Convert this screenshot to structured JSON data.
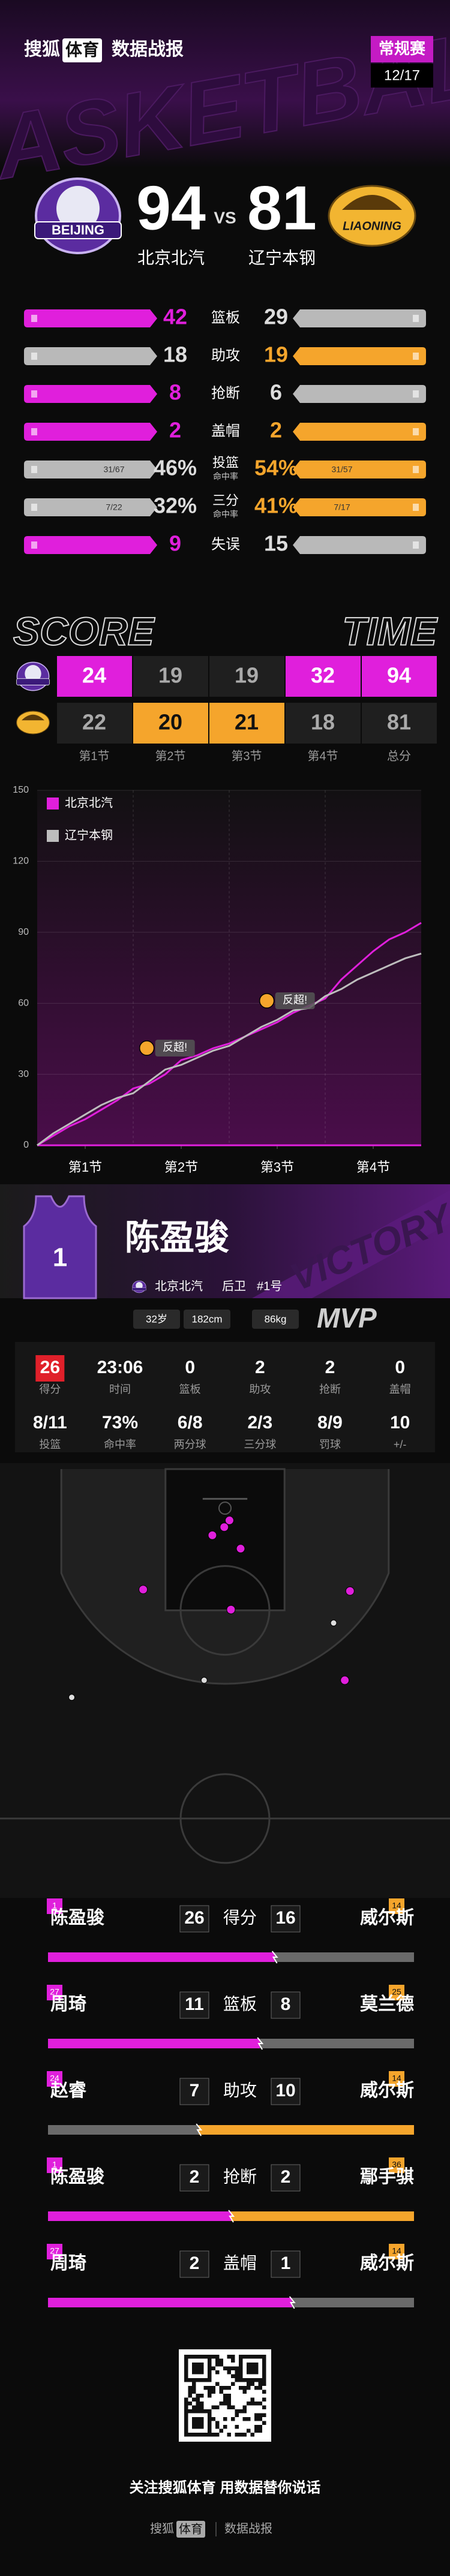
{
  "header": {
    "brand": "搜狐",
    "brand_box": "体育",
    "title": "数据战报",
    "badge": "常规赛",
    "date": "12/17",
    "watermark": "BASKETBALL"
  },
  "colors": {
    "home": "#e01fdc",
    "away": "#f5a52c",
    "neutral": "#b9b9b9"
  },
  "game": {
    "vs": "VS",
    "home": {
      "name": "北京北汽",
      "name_en": "BEIJING",
      "score": 94
    },
    "away": {
      "name": "辽宁本钢",
      "name_en": "LIAONING",
      "score": 81
    }
  },
  "team_stats": [
    {
      "label": "篮板",
      "home": 42,
      "away": 29,
      "better": "home"
    },
    {
      "label": "助攻",
      "home": 18,
      "away": 19,
      "better": "away"
    },
    {
      "label": "抢断",
      "home": 8,
      "away": 6,
      "better": "home"
    },
    {
      "label": "盖帽",
      "home": 2,
      "away": 2,
      "better": "both"
    },
    {
      "label": "投篮",
      "sublabel": "命中率",
      "home": 46,
      "away": 54,
      "home_label": "46%",
      "away_label": "54%",
      "home_detail": "31/67",
      "away_detail": "31/57",
      "better": "away"
    },
    {
      "label": "三分",
      "sublabel": "命中率",
      "home": 32,
      "away": 41,
      "home_label": "32%",
      "away_label": "41%",
      "home_detail": "7/22",
      "away_detail": "7/17",
      "better": "away"
    },
    {
      "label": "失误",
      "home": 9,
      "away": 15,
      "better": "home"
    }
  ],
  "quarters": {
    "title_left": "SCORE",
    "title_right": "TIME",
    "labels": [
      "第1节",
      "第2节",
      "第3节",
      "第4节",
      "总分"
    ],
    "home": [
      24,
      19,
      19,
      32,
      94
    ],
    "away": [
      22,
      20,
      21,
      18,
      81
    ]
  },
  "chart_data": {
    "type": "line",
    "x": [
      0,
      2,
      4,
      6,
      8,
      10,
      12,
      14,
      16,
      18,
      20,
      22,
      24,
      26,
      28,
      30,
      32,
      34,
      36,
      38,
      40,
      42,
      44,
      46,
      48
    ],
    "series": [
      {
        "name": "北京北汽",
        "color": "#e01fdc",
        "values": [
          0,
          4,
          8,
          11,
          15,
          19,
          24,
          26,
          30,
          36,
          38,
          41,
          43,
          46,
          49,
          52,
          56,
          59,
          62,
          70,
          76,
          82,
          87,
          90,
          94
        ]
      },
      {
        "name": "辽宁本钢",
        "color": "#bdbdbd",
        "values": [
          0,
          5,
          9,
          13,
          17,
          20,
          22,
          27,
          32,
          34,
          37,
          40,
          42,
          46,
          50,
          53,
          57,
          58,
          63,
          66,
          70,
          73,
          76,
          79,
          81
        ]
      }
    ],
    "xlim": [
      0,
      48
    ],
    "xticks": [
      {
        "value": 6,
        "label": "第1节"
      },
      {
        "value": 18,
        "label": "第2节"
      },
      {
        "value": 30,
        "label": "第3节"
      },
      {
        "value": 42,
        "label": "第4节"
      }
    ],
    "ylim": [
      0,
      150
    ],
    "yticks": [
      0,
      30,
      60,
      90,
      120,
      150
    ],
    "grid": true,
    "legend": "top-left",
    "annotations": [
      {
        "text": "反超!",
        "x": 17,
        "y": 36
      },
      {
        "text": "反超!",
        "x": 32,
        "y": 56
      }
    ]
  },
  "mvp": {
    "watermark": "VICTORY",
    "jersey": "1",
    "name": "陈盈骏",
    "team": "北京北汽",
    "position": "后卫",
    "number": "#1号",
    "age": "32岁",
    "height": "182cm",
    "weight": "86kg",
    "badge": "MVP",
    "stats": [
      {
        "value": 26,
        "label": "得分",
        "highlight": true
      },
      {
        "value": "23:06",
        "label": "时间"
      },
      {
        "value": 0,
        "label": "篮板"
      },
      {
        "value": 2,
        "label": "助攻"
      },
      {
        "value": 2,
        "label": "抢断"
      },
      {
        "value": 0,
        "label": "盖帽"
      },
      {
        "value": "8/11",
        "label": "投篮"
      },
      {
        "value": "73%",
        "label": "命中率"
      },
      {
        "value": "6/8",
        "label": "两分球"
      },
      {
        "value": "2/3",
        "label": "三分球"
      },
      {
        "value": "8/9",
        "label": "罚球"
      },
      {
        "value": 10,
        "label": "+/-"
      }
    ]
  },
  "shot_chart": {
    "shots": [
      {
        "x": 25.6,
        "y": 6.9,
        "made": true
      },
      {
        "x": 23.3,
        "y": 8.9,
        "made": true
      },
      {
        "x": 27.1,
        "y": 10.7,
        "made": true
      },
      {
        "x": 24.9,
        "y": 7.8,
        "made": true
      },
      {
        "x": 14,
        "y": 16.2,
        "made": true
      },
      {
        "x": 25.8,
        "y": 18.9,
        "made": true
      },
      {
        "x": 41.8,
        "y": 16.4,
        "made": true
      },
      {
        "x": 41.1,
        "y": 28.4,
        "made": true
      },
      {
        "x": 39.6,
        "y": 20.7,
        "made": false
      },
      {
        "x": 4.4,
        "y": 30.7,
        "made": false
      },
      {
        "x": 22.2,
        "y": 28.4,
        "made": false
      }
    ]
  },
  "leaders": [
    {
      "stat": "得分",
      "home": {
        "name": "陈盈骏",
        "number": "1",
        "value": 26
      },
      "away": {
        "name": "威尔斯",
        "number": "14",
        "value": 16
      }
    },
    {
      "stat": "篮板",
      "home": {
        "name": "周琦",
        "number": "27",
        "value": 11
      },
      "away": {
        "name": "莫兰德",
        "number": "25",
        "value": 8
      }
    },
    {
      "stat": "助攻",
      "home": {
        "name": "赵睿",
        "number": "24",
        "value": 7
      },
      "away": {
        "name": "威尔斯",
        "number": "14",
        "value": 10
      }
    },
    {
      "stat": "抢断",
      "home": {
        "name": "陈盈骏",
        "number": "1",
        "value": 2
      },
      "away": {
        "name": "鄢手骐",
        "number": "36",
        "value": 2
      }
    },
    {
      "stat": "盖帽",
      "home": {
        "name": "周琦",
        "number": "27",
        "value": 2
      },
      "away": {
        "name": "威尔斯",
        "number": "14",
        "value": 1
      }
    }
  ],
  "footer": {
    "slogan": "关注搜狐体育 用数据替你说话",
    "brand": "搜狐",
    "brand_box": "体育",
    "title": "数据战报"
  }
}
